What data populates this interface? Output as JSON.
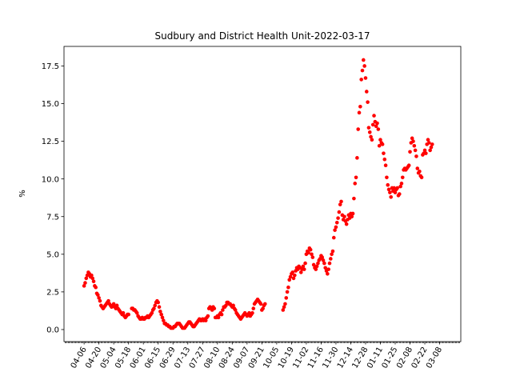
{
  "chart_data": {
    "type": "scatter",
    "title": "Sudbury and District Health Unit-2022-03-17",
    "xlabel": "",
    "ylabel": "%",
    "ylim": [
      -0.8,
      18.8
    ],
    "xlim": [
      "2021-03-18",
      "2022-03-28"
    ],
    "marker_color": "#ff0000",
    "y_ticks": [
      0.0,
      2.5,
      5.0,
      7.5,
      10.0,
      12.5,
      15.0,
      17.5
    ],
    "y_tick_labels": [
      "0.0",
      "2.5",
      "5.0",
      "7.5",
      "10.0",
      "12.5",
      "15.0",
      "17.5"
    ],
    "x_tick_dates": [
      "2021-04-06",
      "2021-04-20",
      "2021-05-04",
      "2021-05-18",
      "2021-06-01",
      "2021-06-15",
      "2021-06-29",
      "2021-07-13",
      "2021-07-27",
      "2021-08-10",
      "2021-08-24",
      "2021-09-07",
      "2021-09-21",
      "2021-10-05",
      "2021-10-19",
      "2021-11-02",
      "2021-11-16",
      "2021-11-30",
      "2021-12-14",
      "2021-12-28",
      "2022-01-11",
      "2022-01-25",
      "2022-02-08",
      "2022-02-22",
      "2022-03-08"
    ],
    "x_tick_labels": [
      "04-06",
      "04-20",
      "05-04",
      "05-18",
      "06-01",
      "06-15",
      "06-29",
      "07-13",
      "07-27",
      "08-10",
      "08-24",
      "09-07",
      "09-21",
      "10-05",
      "10-19",
      "11-02",
      "11-16",
      "11-30",
      "12-14",
      "12-28",
      "01-11",
      "01-25",
      "02-08",
      "02-22",
      "03-08"
    ],
    "points": [
      [
        "2021-04-06",
        2.9
      ],
      [
        "2021-04-07",
        3.1
      ],
      [
        "2021-04-08",
        3.4
      ],
      [
        "2021-04-09",
        3.6
      ],
      [
        "2021-04-10",
        3.8
      ],
      [
        "2021-04-11",
        3.7
      ],
      [
        "2021-04-12",
        3.5
      ],
      [
        "2021-04-13",
        3.6
      ],
      [
        "2021-04-14",
        3.4
      ],
      [
        "2021-04-15",
        3.2
      ],
      [
        "2021-04-16",
        2.9
      ],
      [
        "2021-04-17",
        2.8
      ],
      [
        "2021-04-18",
        2.4
      ],
      [
        "2021-04-19",
        2.3
      ],
      [
        "2021-04-20",
        2.1
      ],
      [
        "2021-04-21",
        1.9
      ],
      [
        "2021-04-22",
        1.6
      ],
      [
        "2021-04-23",
        1.5
      ],
      [
        "2021-04-24",
        1.4
      ],
      [
        "2021-04-25",
        1.5
      ],
      [
        "2021-04-26",
        1.6
      ],
      [
        "2021-04-27",
        1.7
      ],
      [
        "2021-04-28",
        1.8
      ],
      [
        "2021-04-29",
        1.9
      ],
      [
        "2021-04-30",
        1.7
      ],
      [
        "2021-05-01",
        1.6
      ],
      [
        "2021-05-02",
        1.5
      ],
      [
        "2021-05-03",
        1.6
      ],
      [
        "2021-05-04",
        1.7
      ],
      [
        "2021-05-05",
        1.5
      ],
      [
        "2021-05-06",
        1.4
      ],
      [
        "2021-05-07",
        1.6
      ],
      [
        "2021-05-08",
        1.4
      ],
      [
        "2021-05-09",
        1.3
      ],
      [
        "2021-05-10",
        1.2
      ],
      [
        "2021-05-11",
        1.1
      ],
      [
        "2021-05-12",
        1.0
      ],
      [
        "2021-05-13",
        1.1
      ],
      [
        "2021-05-14",
        0.9
      ],
      [
        "2021-05-15",
        0.8
      ],
      [
        "2021-05-16",
        0.9
      ],
      [
        "2021-05-17",
        1.0
      ],
      [
        "2021-05-18",
        1.0
      ],
      [
        "2021-05-21",
        1.4
      ],
      [
        "2021-05-22",
        1.4
      ],
      [
        "2021-05-23",
        1.3
      ],
      [
        "2021-05-24",
        1.3
      ],
      [
        "2021-05-25",
        1.2
      ],
      [
        "2021-05-26",
        1.1
      ],
      [
        "2021-05-27",
        0.9
      ],
      [
        "2021-05-28",
        0.8
      ],
      [
        "2021-05-29",
        0.7
      ],
      [
        "2021-05-30",
        0.7
      ],
      [
        "2021-05-31",
        0.8
      ],
      [
        "2021-06-01",
        0.7
      ],
      [
        "2021-06-02",
        0.7
      ],
      [
        "2021-06-03",
        0.8
      ],
      [
        "2021-06-04",
        0.8
      ],
      [
        "2021-06-05",
        0.9
      ],
      [
        "2021-06-06",
        0.8
      ],
      [
        "2021-06-07",
        0.9
      ],
      [
        "2021-06-08",
        1.0
      ],
      [
        "2021-06-09",
        1.1
      ],
      [
        "2021-06-10",
        1.3
      ],
      [
        "2021-06-11",
        1.4
      ],
      [
        "2021-06-12",
        1.6
      ],
      [
        "2021-06-13",
        1.8
      ],
      [
        "2021-06-14",
        1.9
      ],
      [
        "2021-06-15",
        1.8
      ],
      [
        "2021-06-16",
        1.5
      ],
      [
        "2021-06-17",
        1.2
      ],
      [
        "2021-06-18",
        1.0
      ],
      [
        "2021-06-19",
        0.8
      ],
      [
        "2021-06-20",
        0.6
      ],
      [
        "2021-06-21",
        0.4
      ],
      [
        "2021-06-22",
        0.4
      ],
      [
        "2021-06-23",
        0.3
      ],
      [
        "2021-06-24",
        0.3
      ],
      [
        "2021-06-25",
        0.2
      ],
      [
        "2021-06-26",
        0.2
      ],
      [
        "2021-06-27",
        0.1
      ],
      [
        "2021-06-28",
        0.1
      ],
      [
        "2021-06-29",
        0.1
      ],
      [
        "2021-06-30",
        0.2
      ],
      [
        "2021-07-01",
        0.2
      ],
      [
        "2021-07-02",
        0.3
      ],
      [
        "2021-07-03",
        0.4
      ],
      [
        "2021-07-04",
        0.4
      ],
      [
        "2021-07-05",
        0.4
      ],
      [
        "2021-07-06",
        0.3
      ],
      [
        "2021-07-07",
        0.2
      ],
      [
        "2021-07-08",
        0.1
      ],
      [
        "2021-07-09",
        0.1
      ],
      [
        "2021-07-10",
        0.1
      ],
      [
        "2021-07-11",
        0.2
      ],
      [
        "2021-07-12",
        0.3
      ],
      [
        "2021-07-13",
        0.4
      ],
      [
        "2021-07-14",
        0.5
      ],
      [
        "2021-07-15",
        0.5
      ],
      [
        "2021-07-16",
        0.4
      ],
      [
        "2021-07-17",
        0.3
      ],
      [
        "2021-07-18",
        0.2
      ],
      [
        "2021-07-19",
        0.2
      ],
      [
        "2021-07-20",
        0.3
      ],
      [
        "2021-07-21",
        0.4
      ],
      [
        "2021-07-22",
        0.5
      ],
      [
        "2021-07-23",
        0.6
      ],
      [
        "2021-07-24",
        0.7
      ],
      [
        "2021-07-25",
        0.6
      ],
      [
        "2021-07-26",
        0.6
      ],
      [
        "2021-07-27",
        0.7
      ],
      [
        "2021-07-28",
        0.6
      ],
      [
        "2021-07-29",
        0.7
      ],
      [
        "2021-07-30",
        0.6
      ],
      [
        "2021-07-31",
        0.8
      ],
      [
        "2021-08-01",
        0.9
      ],
      [
        "2021-08-02",
        1.4
      ],
      [
        "2021-08-03",
        1.5
      ],
      [
        "2021-08-04",
        1.4
      ],
      [
        "2021-08-05",
        1.3
      ],
      [
        "2021-08-06",
        1.5
      ],
      [
        "2021-08-07",
        1.4
      ],
      [
        "2021-08-08",
        0.8
      ],
      [
        "2021-08-09",
        0.8
      ],
      [
        "2021-08-10",
        0.9
      ],
      [
        "2021-08-11",
        0.8
      ],
      [
        "2021-08-12",
        1.0
      ],
      [
        "2021-08-13",
        1.1
      ],
      [
        "2021-08-14",
        1.0
      ],
      [
        "2021-08-15",
        1.3
      ],
      [
        "2021-08-16",
        1.5
      ],
      [
        "2021-08-17",
        1.5
      ],
      [
        "2021-08-18",
        1.6
      ],
      [
        "2021-08-19",
        1.8
      ],
      [
        "2021-08-20",
        1.8
      ],
      [
        "2021-08-21",
        1.7
      ],
      [
        "2021-08-22",
        1.7
      ],
      [
        "2021-08-23",
        1.6
      ],
      [
        "2021-08-24",
        1.5
      ],
      [
        "2021-08-25",
        1.6
      ],
      [
        "2021-08-26",
        1.4
      ],
      [
        "2021-08-27",
        1.3
      ],
      [
        "2021-08-28",
        1.1
      ],
      [
        "2021-08-29",
        1.0
      ],
      [
        "2021-08-30",
        0.9
      ],
      [
        "2021-08-31",
        0.8
      ],
      [
        "2021-09-01",
        0.7
      ],
      [
        "2021-09-02",
        0.8
      ],
      [
        "2021-09-03",
        0.9
      ],
      [
        "2021-09-04",
        1.0
      ],
      [
        "2021-09-05",
        1.1
      ],
      [
        "2021-09-06",
        1.0
      ],
      [
        "2021-09-07",
        0.9
      ],
      [
        "2021-09-08",
        1.0
      ],
      [
        "2021-09-09",
        1.1
      ],
      [
        "2021-09-10",
        0.9
      ],
      [
        "2021-09-11",
        1.0
      ],
      [
        "2021-09-12",
        1.1
      ],
      [
        "2021-09-13",
        1.4
      ],
      [
        "2021-09-14",
        1.7
      ],
      [
        "2021-09-15",
        1.8
      ],
      [
        "2021-09-16",
        1.9
      ],
      [
        "2021-09-17",
        2.0
      ],
      [
        "2021-09-18",
        1.9
      ],
      [
        "2021-09-19",
        1.8
      ],
      [
        "2021-09-20",
        1.7
      ],
      [
        "2021-09-21",
        1.3
      ],
      [
        "2021-09-22",
        1.4
      ],
      [
        "2021-09-23",
        1.6
      ],
      [
        "2021-09-24",
        1.7
      ],
      [
        "2021-10-11",
        1.3
      ],
      [
        "2021-10-12",
        1.5
      ],
      [
        "2021-10-13",
        1.7
      ],
      [
        "2021-10-14",
        2.1
      ],
      [
        "2021-10-15",
        2.5
      ],
      [
        "2021-10-16",
        2.8
      ],
      [
        "2021-10-17",
        3.3
      ],
      [
        "2021-10-18",
        3.5
      ],
      [
        "2021-10-19",
        3.7
      ],
      [
        "2021-10-20",
        3.8
      ],
      [
        "2021-10-21",
        3.4
      ],
      [
        "2021-10-22",
        3.6
      ],
      [
        "2021-10-23",
        3.9
      ],
      [
        "2021-10-24",
        4.1
      ],
      [
        "2021-10-25",
        4.0
      ],
      [
        "2021-10-26",
        4.2
      ],
      [
        "2021-10-27",
        4.1
      ],
      [
        "2021-10-28",
        3.8
      ],
      [
        "2021-10-29",
        4.0
      ],
      [
        "2021-10-30",
        4.2
      ],
      [
        "2021-10-31",
        4.0
      ],
      [
        "2021-11-01",
        4.4
      ],
      [
        "2021-11-02",
        5.0
      ],
      [
        "2021-11-03",
        5.2
      ],
      [
        "2021-11-04",
        5.1
      ],
      [
        "2021-11-05",
        5.4
      ],
      [
        "2021-11-06",
        5.3
      ],
      [
        "2021-11-07",
        5.0
      ],
      [
        "2021-11-08",
        4.8
      ],
      [
        "2021-11-09",
        4.3
      ],
      [
        "2021-11-10",
        4.1
      ],
      [
        "2021-11-11",
        4.0
      ],
      [
        "2021-11-12",
        4.2
      ],
      [
        "2021-11-13",
        4.4
      ],
      [
        "2021-11-14",
        4.6
      ],
      [
        "2021-11-15",
        4.7
      ],
      [
        "2021-11-16",
        4.9
      ],
      [
        "2021-11-17",
        4.8
      ],
      [
        "2021-11-18",
        4.6
      ],
      [
        "2021-11-19",
        4.4
      ],
      [
        "2021-11-20",
        4.1
      ],
      [
        "2021-11-21",
        3.9
      ],
      [
        "2021-11-22",
        3.7
      ],
      [
        "2021-11-23",
        4.0
      ],
      [
        "2021-11-24",
        4.4
      ],
      [
        "2021-11-25",
        4.7
      ],
      [
        "2021-11-26",
        5.0
      ],
      [
        "2021-11-27",
        5.2
      ],
      [
        "2021-11-28",
        6.1
      ],
      [
        "2021-11-29",
        6.6
      ],
      [
        "2021-11-30",
        6.8
      ],
      [
        "2021-12-01",
        7.1
      ],
      [
        "2021-12-02",
        7.4
      ],
      [
        "2021-12-03",
        7.8
      ],
      [
        "2021-12-04",
        8.3
      ],
      [
        "2021-12-05",
        8.5
      ],
      [
        "2021-12-06",
        7.6
      ],
      [
        "2021-12-07",
        7.3
      ],
      [
        "2021-12-08",
        7.5
      ],
      [
        "2021-12-09",
        7.2
      ],
      [
        "2021-12-10",
        7.0
      ],
      [
        "2021-12-11",
        7.3
      ],
      [
        "2021-12-12",
        7.6
      ],
      [
        "2021-12-13",
        7.4
      ],
      [
        "2021-12-14",
        7.7
      ],
      [
        "2021-12-15",
        7.5
      ],
      [
        "2021-12-16",
        7.7
      ],
      [
        "2021-12-17",
        8.7
      ],
      [
        "2021-12-18",
        9.7
      ],
      [
        "2021-12-19",
        10.1
      ],
      [
        "2021-12-20",
        11.4
      ],
      [
        "2021-12-21",
        13.3
      ],
      [
        "2021-12-22",
        14.4
      ],
      [
        "2021-12-23",
        14.8
      ],
      [
        "2021-12-24",
        16.6
      ],
      [
        "2021-12-25",
        17.2
      ],
      [
        "2021-12-26",
        17.9
      ],
      [
        "2021-12-27",
        17.5
      ],
      [
        "2021-12-28",
        16.7
      ],
      [
        "2021-12-29",
        15.8
      ],
      [
        "2021-12-30",
        15.1
      ],
      [
        "2021-12-31",
        13.4
      ],
      [
        "2022-01-01",
        13.1
      ],
      [
        "2022-01-02",
        12.8
      ],
      [
        "2022-01-03",
        12.6
      ],
      [
        "2022-01-04",
        13.6
      ],
      [
        "2022-01-05",
        14.2
      ],
      [
        "2022-01-06",
        13.8
      ],
      [
        "2022-01-07",
        13.5
      ],
      [
        "2022-01-08",
        13.7
      ],
      [
        "2022-01-09",
        13.3
      ],
      [
        "2022-01-10",
        12.2
      ],
      [
        "2022-01-11",
        12.6
      ],
      [
        "2022-01-12",
        12.4
      ],
      [
        "2022-01-13",
        12.3
      ],
      [
        "2022-01-14",
        11.7
      ],
      [
        "2022-01-15",
        11.3
      ],
      [
        "2022-01-16",
        10.9
      ],
      [
        "2022-01-17",
        10.1
      ],
      [
        "2022-01-18",
        9.6
      ],
      [
        "2022-01-19",
        9.3
      ],
      [
        "2022-01-20",
        9.1
      ],
      [
        "2022-01-21",
        8.8
      ],
      [
        "2022-01-22",
        9.4
      ],
      [
        "2022-01-23",
        9.2
      ],
      [
        "2022-01-24",
        9.4
      ],
      [
        "2022-01-25",
        9.1
      ],
      [
        "2022-01-26",
        9.3
      ],
      [
        "2022-01-27",
        9.4
      ],
      [
        "2022-01-28",
        8.9
      ],
      [
        "2022-01-29",
        9.0
      ],
      [
        "2022-01-30",
        9.5
      ],
      [
        "2022-01-31",
        9.7
      ],
      [
        "2022-02-01",
        10.1
      ],
      [
        "2022-02-02",
        10.6
      ],
      [
        "2022-02-03",
        10.7
      ],
      [
        "2022-02-04",
        10.6
      ],
      [
        "2022-02-05",
        10.7
      ],
      [
        "2022-02-06",
        10.8
      ],
      [
        "2022-02-07",
        10.9
      ],
      [
        "2022-02-08",
        11.8
      ],
      [
        "2022-02-09",
        12.4
      ],
      [
        "2022-02-10",
        12.7
      ],
      [
        "2022-02-11",
        12.5
      ],
      [
        "2022-02-12",
        12.2
      ],
      [
        "2022-02-13",
        11.9
      ],
      [
        "2022-02-14",
        11.5
      ],
      [
        "2022-02-15",
        10.7
      ],
      [
        "2022-02-16",
        10.4
      ],
      [
        "2022-02-17",
        10.5
      ],
      [
        "2022-02-18",
        10.2
      ],
      [
        "2022-02-19",
        10.1
      ],
      [
        "2022-02-20",
        11.6
      ],
      [
        "2022-02-21",
        11.7
      ],
      [
        "2022-02-22",
        11.9
      ],
      [
        "2022-02-23",
        11.7
      ],
      [
        "2022-02-24",
        12.3
      ],
      [
        "2022-02-25",
        12.6
      ],
      [
        "2022-02-26",
        12.4
      ],
      [
        "2022-02-27",
        11.9
      ],
      [
        "2022-02-28",
        12.1
      ],
      [
        "2022-03-01",
        12.3
      ]
    ]
  }
}
